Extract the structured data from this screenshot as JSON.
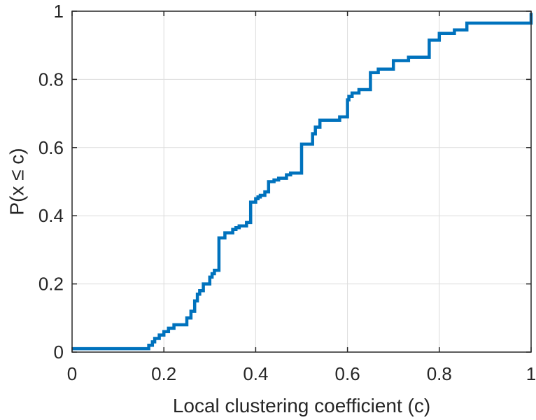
{
  "chart_data": {
    "type": "line",
    "step": true,
    "title": "",
    "xlabel": "Local clustering coefficient (c)",
    "ylabel": "P(x ≤ c)",
    "xlim": [
      0,
      1
    ],
    "ylim": [
      0,
      1
    ],
    "xticks": [
      0,
      0.2,
      0.4,
      0.6,
      0.8,
      1
    ],
    "yticks": [
      0,
      0.2,
      0.4,
      0.6,
      0.8,
      1
    ],
    "xtick_labels": [
      "0",
      "0.2",
      "0.4",
      "0.6",
      "0.8",
      "1"
    ],
    "ytick_labels": [
      "0",
      "0.2",
      "0.4",
      "0.6",
      "0.8",
      "1"
    ],
    "grid": true,
    "color": "#0072bd",
    "series": [
      {
        "x": [
          0,
          0.167,
          0.175,
          0.18,
          0.19,
          0.2,
          0.21,
          0.222,
          0.25,
          0.259,
          0.267,
          0.273,
          0.278,
          0.286,
          0.3,
          0.305,
          0.31,
          0.32,
          0.333,
          0.35,
          0.357,
          0.364,
          0.38,
          0.389,
          0.4,
          0.405,
          0.41,
          0.42,
          0.428,
          0.44,
          0.45,
          0.467,
          0.476,
          0.5,
          0.524,
          0.53,
          0.54,
          0.583,
          0.6,
          0.603,
          0.61,
          0.625,
          0.65,
          0.667,
          0.7,
          0.733,
          0.778,
          0.8,
          0.833,
          0.86,
          0.9,
          1.0
        ],
        "y": [
          0.01,
          0.02,
          0.03,
          0.04,
          0.05,
          0.06,
          0.07,
          0.08,
          0.1,
          0.12,
          0.15,
          0.17,
          0.18,
          0.2,
          0.22,
          0.23,
          0.24,
          0.335,
          0.35,
          0.36,
          0.365,
          0.37,
          0.38,
          0.44,
          0.45,
          0.455,
          0.46,
          0.47,
          0.5,
          0.505,
          0.51,
          0.52,
          0.525,
          0.61,
          0.64,
          0.66,
          0.68,
          0.69,
          0.74,
          0.75,
          0.76,
          0.77,
          0.82,
          0.83,
          0.855,
          0.865,
          0.915,
          0.935,
          0.945,
          0.965,
          0.965,
          0.995
        ]
      }
    ]
  }
}
